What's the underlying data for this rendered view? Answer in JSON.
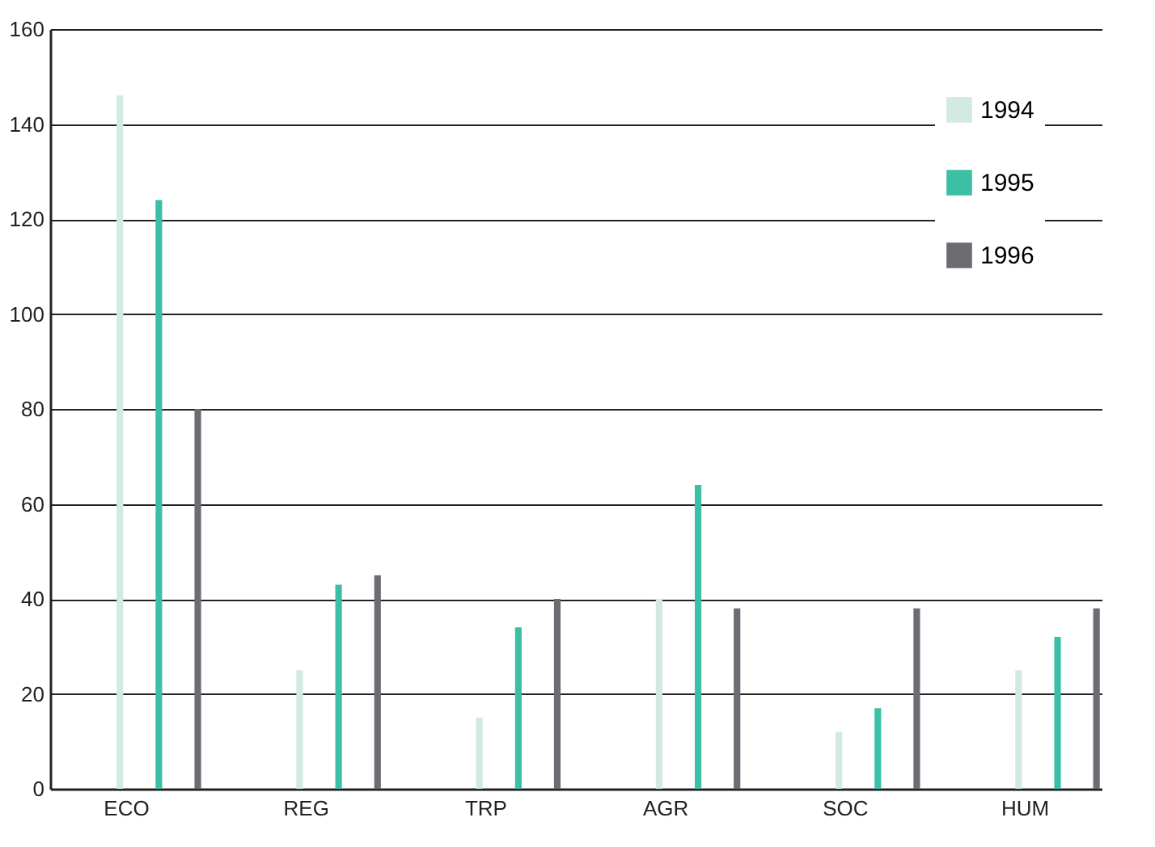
{
  "chart_data": {
    "type": "bar",
    "categories": [
      "ECO",
      "REG",
      "TRP",
      "AGR",
      "SOC",
      "HUM"
    ],
    "series": [
      {
        "name": "1994",
        "color": "#d2e9e4",
        "values": [
          146,
          25,
          15,
          40,
          12,
          25
        ]
      },
      {
        "name": "1995",
        "color": "#3dbfa5",
        "values": [
          124,
          43,
          34,
          64,
          17,
          32
        ]
      },
      {
        "name": "1996",
        "color": "#6f6b72",
        "values": [
          80,
          45,
          40,
          38,
          38,
          38
        ]
      }
    ],
    "ylim": [
      0,
      160
    ],
    "yticks": [
      0,
      20,
      40,
      60,
      80,
      100,
      120,
      140,
      160
    ],
    "grid": "y",
    "legend": "top right"
  }
}
